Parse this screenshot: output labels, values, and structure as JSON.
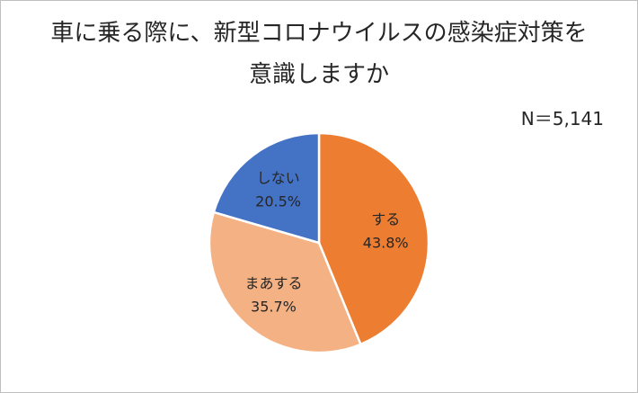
{
  "chart_data": {
    "type": "pie",
    "title_lines": [
      "車に乗る際に、新型コロナウイルスの感染症対策を",
      "意識しますか"
    ],
    "note": "N＝5,141",
    "start_angle_deg": 0,
    "direction": "clockwise",
    "slices": [
      {
        "label": "する",
        "value": 43.8,
        "display": "43.8%",
        "color": "#ED7D31"
      },
      {
        "label": "まあする",
        "value": 35.7,
        "display": "35.7%",
        "color": "#F4B183"
      },
      {
        "label": "しない",
        "value": 20.5,
        "display": "20.5%",
        "color": "#4472C4"
      }
    ]
  }
}
